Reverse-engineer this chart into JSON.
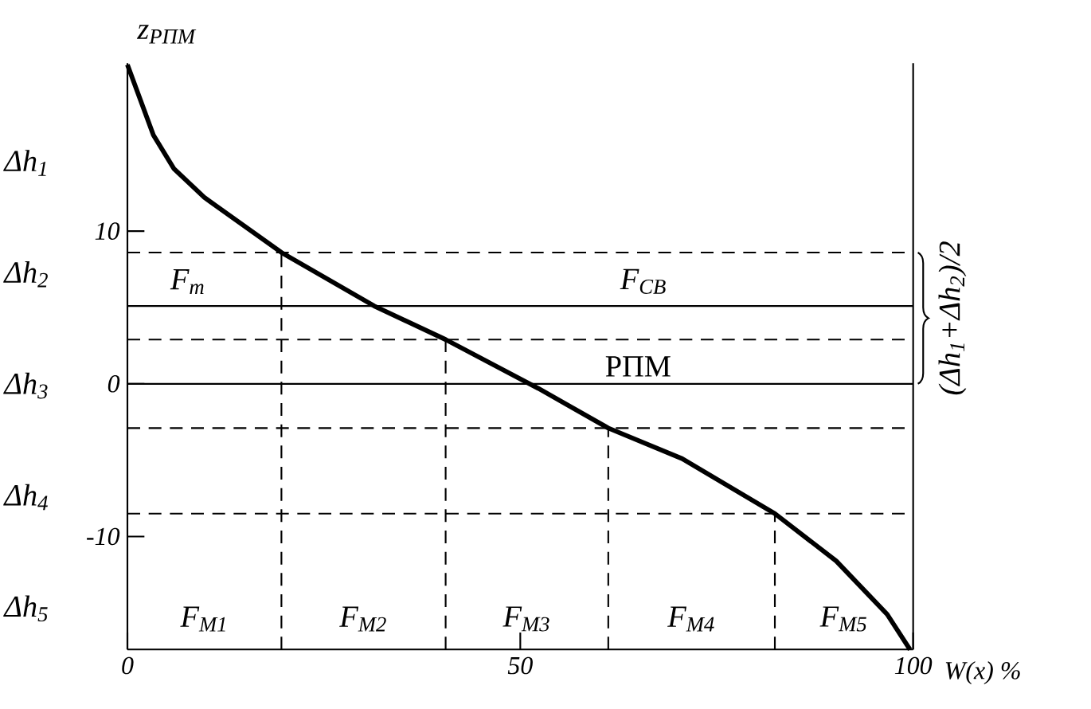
{
  "chart_data": {
    "type": "line",
    "ylabel": "z$_{РПМ}$",
    "xlabel": "W(x) %",
    "xlim": [
      0,
      100
    ],
    "ylim": [
      -17.4,
      21
    ],
    "xticks": [
      0,
      50,
      100
    ],
    "yticks": [
      -10,
      0,
      10
    ],
    "grid": false,
    "marker": "none",
    "line_style": "solid",
    "series": [
      {
        "color": "#000000",
        "x": [
          0,
          3.3,
          5.9,
          9.8,
          19.6,
          31.4,
          40.5,
          52.3,
          61.2,
          70.6,
          82.4,
          90.2,
          96.7,
          99.6
        ],
        "values": [
          20.9,
          16.3,
          14.1,
          12.2,
          8.6,
          5.1,
          2.9,
          -0.3,
          -2.9,
          -4.9,
          -8.5,
          -11.6,
          -15.1,
          -17.4
        ]
      }
    ],
    "ref_lines": [
      {
        "axis": "y",
        "value": 8.6,
        "line_style": "dashed"
      },
      {
        "axis": "y",
        "value": 5.1,
        "line_style": "solid"
      },
      {
        "axis": "y",
        "value": 2.9,
        "line_style": "dashed"
      },
      {
        "axis": "y",
        "value": 0,
        "line_style": "solid",
        "label": "РПМ"
      },
      {
        "axis": "y",
        "value": -2.9,
        "line_style": "dashed"
      },
      {
        "axis": "y",
        "value": -8.5,
        "line_style": "dashed"
      },
      {
        "axis": "x",
        "value": 19.6,
        "line_style": "dashed"
      },
      {
        "axis": "x",
        "value": 40.5,
        "line_style": "dashed"
      },
      {
        "axis": "x",
        "value": 61.2,
        "line_style": "dashed"
      },
      {
        "axis": "x",
        "value": 82.4,
        "line_style": "dashed"
      }
    ],
    "annotations": [
      "Δh$_{1}$",
      "Δh$_{2}$",
      "Δh$_{3}$",
      "Δh$_{4}$",
      "Δh$_{5}$",
      "F$_{т}$",
      "F$_{СВ}$",
      "F$_{M1}$",
      "F$_{M2}$",
      "F$_{M3}$",
      "F$_{M4}$",
      "F$_{M5}$",
      "(Δh$_{1}$+Δh$_{2}$)/2"
    ]
  }
}
